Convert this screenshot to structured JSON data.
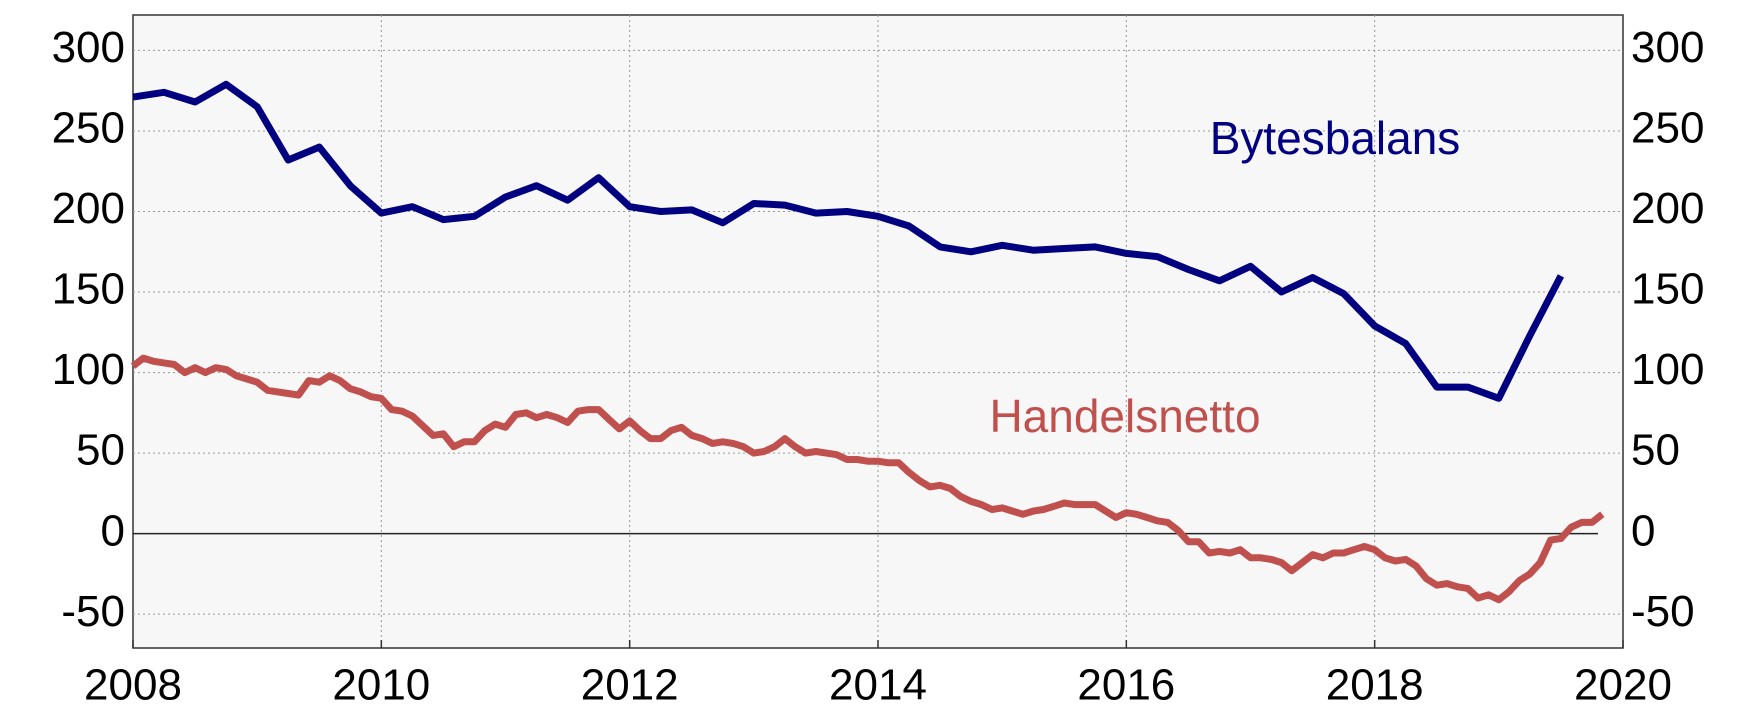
{
  "chart_data": {
    "type": "line",
    "xlim": [
      2008,
      2020
    ],
    "xticks": [
      2008,
      2010,
      2012,
      2014,
      2016,
      2018,
      2020
    ],
    "ylim": [
      -71,
      322
    ],
    "yticks": [
      -50,
      0,
      50,
      100,
      150,
      200,
      250,
      300
    ],
    "grid": true,
    "series": [
      {
        "name": "Bytesbalans",
        "color": "#000080",
        "x": [
          2008,
          2008.25,
          2008.5,
          2008.75,
          2009,
          2009.25,
          2009.5,
          2009.75,
          2010,
          2010.25,
          2010.5,
          2010.75,
          2011,
          2011.25,
          2011.5,
          2011.75,
          2012,
          2012.25,
          2012.5,
          2012.75,
          2013,
          2013.25,
          2013.5,
          2013.75,
          2014,
          2014.25,
          2014.5,
          2014.75,
          2015,
          2015.25,
          2015.5,
          2015.75,
          2016,
          2016.25,
          2016.5,
          2016.75,
          2017,
          2017.25,
          2017.5,
          2017.75,
          2018,
          2018.25,
          2018.5,
          2018.75,
          2019,
          2019.25,
          2019.5
        ],
        "values": [
          271,
          274,
          268,
          279,
          265,
          232,
          240,
          216,
          199,
          203,
          195,
          197,
          209,
          216,
          207,
          221,
          203,
          200,
          201,
          193,
          205,
          204,
          199,
          200,
          197,
          191,
          178,
          175,
          179,
          176,
          177,
          178,
          174,
          172,
          164,
          157,
          166,
          150,
          159,
          149,
          129,
          118,
          91,
          91,
          84,
          123,
          160
        ]
      },
      {
        "name": "Handelsnetto",
        "color": "#c0504d",
        "x": [
          2008,
          2008.083,
          2008.167,
          2008.25,
          2008.333,
          2008.417,
          2008.5,
          2008.583,
          2008.667,
          2008.75,
          2008.833,
          2008.917,
          2009,
          2009.083,
          2009.167,
          2009.25,
          2009.333,
          2009.417,
          2009.5,
          2009.583,
          2009.667,
          2009.75,
          2009.833,
          2009.917,
          2010,
          2010.083,
          2010.167,
          2010.25,
          2010.333,
          2010.417,
          2010.5,
          2010.583,
          2010.667,
          2010.75,
          2010.833,
          2010.917,
          2011,
          2011.083,
          2011.167,
          2011.25,
          2011.333,
          2011.417,
          2011.5,
          2011.583,
          2011.667,
          2011.75,
          2011.833,
          2011.917,
          2012,
          2012.083,
          2012.167,
          2012.25,
          2012.333,
          2012.417,
          2012.5,
          2012.583,
          2012.667,
          2012.75,
          2012.833,
          2012.917,
          2013,
          2013.083,
          2013.167,
          2013.25,
          2013.333,
          2013.417,
          2013.5,
          2013.583,
          2013.667,
          2013.75,
          2013.833,
          2013.917,
          2014,
          2014.083,
          2014.167,
          2014.25,
          2014.333,
          2014.417,
          2014.5,
          2014.583,
          2014.667,
          2014.75,
          2014.833,
          2014.917,
          2015,
          2015.083,
          2015.167,
          2015.25,
          2015.333,
          2015.417,
          2015.5,
          2015.583,
          2015.667,
          2015.75,
          2015.833,
          2015.917,
          2016,
          2016.083,
          2016.167,
          2016.25,
          2016.333,
          2016.417,
          2016.5,
          2016.583,
          2016.667,
          2016.75,
          2016.833,
          2016.917,
          2017,
          2017.083,
          2017.167,
          2017.25,
          2017.333,
          2017.417,
          2017.5,
          2017.583,
          2017.667,
          2017.75,
          2017.833,
          2017.917,
          2018,
          2018.083,
          2018.167,
          2018.25,
          2018.333,
          2018.417,
          2018.5,
          2018.583,
          2018.667,
          2018.75,
          2018.833,
          2018.917,
          2019,
          2019.083,
          2019.167,
          2019.25,
          2019.333,
          2019.417,
          2019.5,
          2019.583,
          2019.667,
          2019.75,
          2019.833
        ],
        "values": [
          104,
          109,
          107,
          106,
          105,
          100,
          103,
          100,
          103,
          102,
          98,
          96,
          94,
          89,
          88,
          87,
          86,
          95,
          94,
          98,
          95,
          90,
          88,
          85,
          84,
          77,
          76,
          73,
          67,
          61,
          62,
          54,
          57,
          57,
          64,
          68,
          66,
          74,
          75,
          72,
          74,
          72,
          69,
          76,
          77,
          77,
          71,
          65,
          70,
          64,
          59,
          59,
          64,
          66,
          61,
          59,
          56,
          57,
          56,
          54,
          50,
          51,
          54,
          59,
          54,
          50,
          51,
          50,
          49,
          46,
          46,
          45,
          45,
          44,
          44,
          38,
          33,
          29,
          30,
          28,
          23,
          20,
          18,
          15,
          16,
          14,
          12,
          14,
          15,
          17,
          19,
          18,
          18,
          18,
          14,
          10,
          13,
          12,
          10,
          8,
          7,
          2,
          -5,
          -5,
          -12,
          -11,
          -12,
          -10,
          -15,
          -15,
          -16,
          -18,
          -23,
          -18,
          -13,
          -15,
          -12,
          -12,
          -10,
          -8,
          -10,
          -15,
          -17,
          -16,
          -20,
          -28,
          -32,
          -31,
          -33,
          -34,
          -40,
          -38,
          -41,
          -36,
          -29,
          -25,
          -18,
          -4,
          -3,
          4,
          7,
          7,
          12
        ]
      }
    ]
  }
}
